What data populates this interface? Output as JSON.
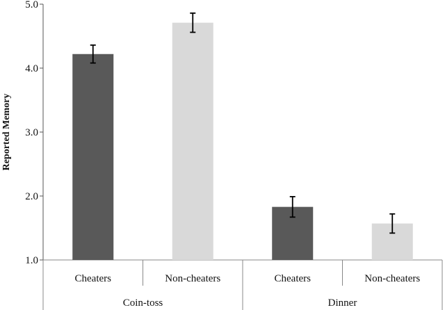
{
  "chart_data": {
    "type": "bar",
    "ylabel": "Reported Memory",
    "ylim": [
      1.0,
      5.0
    ],
    "yticks": [
      "1.0",
      "2.0",
      "3.0",
      "4.0",
      "5.0"
    ],
    "grid": false,
    "groups": [
      {
        "label": "Coin-toss",
        "bars": [
          {
            "category": "Cheaters",
            "value": 4.22,
            "error": 0.14,
            "color": "#595959"
          },
          {
            "category": "Non-cheaters",
            "value": 4.71,
            "error": 0.15,
            "color": "#d9d9d9"
          }
        ]
      },
      {
        "label": "Dinner",
        "bars": [
          {
            "category": "Cheaters",
            "value": 1.83,
            "error": 0.16,
            "color": "#595959"
          },
          {
            "category": "Non-cheaters",
            "value": 1.57,
            "error": 0.15,
            "color": "#d9d9d9"
          }
        ]
      }
    ]
  }
}
